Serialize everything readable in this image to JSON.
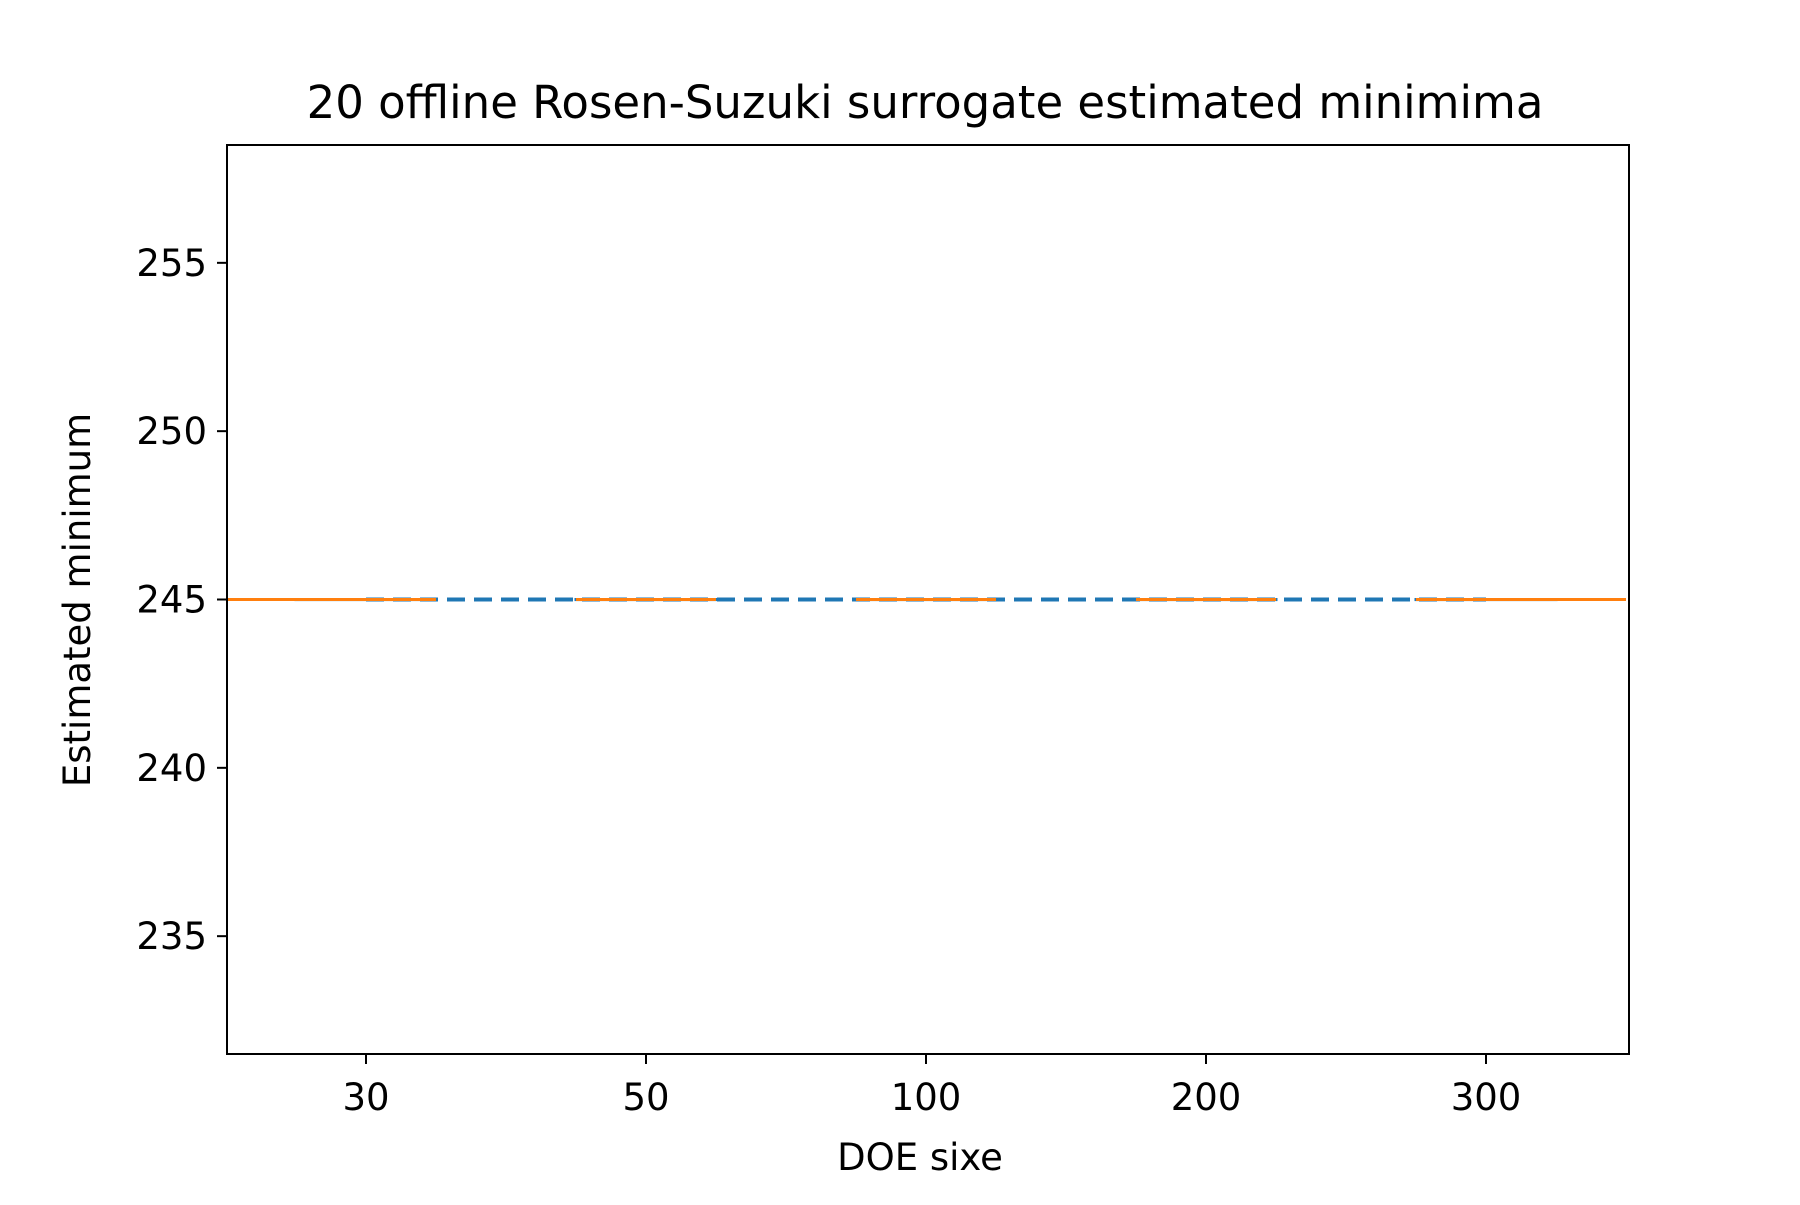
{
  "chart_data": {
    "type": "line",
    "title": "20 offline Rosen-Suzuki surrogate estimated minimima",
    "xlabel": "DOE sixe",
    "ylabel": "Estimated minimum",
    "categories": [
      "30",
      "50",
      "100",
      "200",
      "300"
    ],
    "x_tick_labels": [
      "30",
      "50",
      "100",
      "200",
      "300"
    ],
    "y_ticks": [
      235,
      240,
      245,
      250,
      255
    ],
    "ylim": [
      231.5,
      258.5
    ],
    "grid": false,
    "legend": "none",
    "series": [
      {
        "line_style": "dashed",
        "color": "#1f77b4",
        "values": [
          245,
          245,
          245,
          245,
          245
        ]
      },
      {
        "line_style": "solid",
        "color": "#ff7f0e",
        "values": [
          245,
          245,
          245,
          245,
          245
        ]
      }
    ],
    "box_estimates": [
      {
        "category": "30",
        "min": 245,
        "q1": 245,
        "median": 245,
        "q3": 245,
        "max": 245
      },
      {
        "category": "50",
        "min": 245,
        "q1": 245,
        "median": 245,
        "q3": 245,
        "max": 245
      },
      {
        "category": "100",
        "min": 245,
        "q1": 245,
        "median": 245,
        "q3": 245,
        "max": 245
      },
      {
        "category": "200",
        "min": 245,
        "q1": 245,
        "median": 245,
        "q3": 245,
        "max": 245
      },
      {
        "category": "300",
        "min": 245,
        "q1": 245,
        "median": 245,
        "q3": 245,
        "max": 245
      }
    ],
    "colors": {
      "axis": "#000000",
      "box": "#1f77b4",
      "median": "#ff7f0e"
    }
  }
}
